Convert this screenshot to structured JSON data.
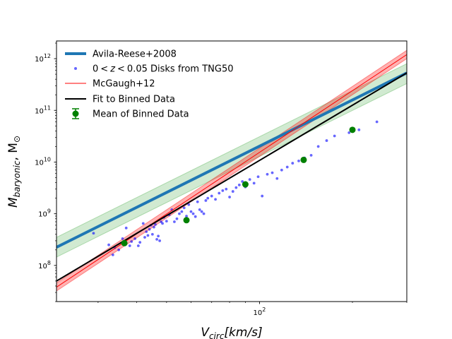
{
  "chart_data": {
    "type": "scatter",
    "title": "",
    "xlabel": {
      "main": "V",
      "sub": "circ",
      "rest": "[km/s]"
    },
    "ylabel": {
      "main": "M",
      "sub": "baryonic",
      "rest": ", M",
      "rest_sub": "⊙"
    },
    "xscale": "log",
    "yscale": "log",
    "xlim": [
      22,
      300
    ],
    "ylim": [
      20000000.0,
      2200000000000.0
    ],
    "x_tick_labels": [
      {
        "value": 100,
        "base": "10",
        "exp": "2"
      }
    ],
    "y_tick_labels": [
      {
        "value": 100000000.0,
        "base": "10",
        "exp": "8"
      },
      {
        "value": 1000000000.0,
        "base": "10",
        "exp": "9"
      },
      {
        "value": 10000000000.0,
        "base": "10",
        "exp": "10"
      },
      {
        "value": 100000000000.0,
        "base": "10",
        "exp": "11"
      },
      {
        "value": 1000000000000.0,
        "base": "10",
        "exp": "12"
      }
    ],
    "legend_position": "top-left",
    "colors": {
      "avila": "#1f77b4",
      "avila_band": "#2ca02c",
      "tng": "#0000ff",
      "mcgaugh": "#ff0000",
      "mcgaugh_band": "#ff0000",
      "fit": "#000000",
      "binned": "#008000"
    },
    "series": [
      {
        "name": "Avila-Reese+2008",
        "kind": "line",
        "x": [
          22,
          300
        ],
        "y": [
          225000000.0,
          530000000000.0
        ],
        "band": {
          "lower": [
            145000000.0,
            330000000000.0
          ],
          "upper": [
            350000000.0,
            800000000000.0
          ]
        }
      },
      {
        "name": "0 < z < 0.05 Disks from TNG50",
        "label_parts": [
          "0",
          "<",
          "z",
          "<",
          "0.05 Disks from TNG50"
        ],
        "kind": "scatter",
        "x": [
          29.0,
          32.5,
          33.5,
          34.0,
          35.0,
          36.0,
          37.0,
          38.0,
          38.5,
          39.5,
          40.5,
          41.0,
          42.0,
          42.5,
          43.0,
          43.5,
          44.0,
          44.5,
          45.0,
          45.5,
          46.0,
          46.5,
          47.0,
          47.5,
          48.0,
          48.5,
          49.0,
          50.0,
          51.0,
          52.0,
          53.0,
          54.0,
          55.0,
          56.0,
          57.0,
          58.0,
          59.0,
          60.0,
          61.0,
          62.0,
          63.0,
          64.0,
          65.0,
          66.0,
          67.0,
          68.0,
          70.0,
          72.0,
          74.0,
          76.0,
          78.0,
          80.0,
          82.0,
          84.0,
          86.0,
          88.0,
          90.0,
          93.0,
          96.0,
          99.0,
          102.0,
          106.0,
          110.0,
          114.0,
          118.0,
          123.0,
          128.0,
          134.0,
          140.0,
          147.0,
          155.0,
          165.0,
          175.0,
          195.0,
          210.0,
          240.0
        ],
        "y": [
          420000000.0,
          250000000.0,
          160000000.0,
          220000000.0,
          200000000.0,
          330000000.0,
          530000000.0,
          240000000.0,
          290000000.0,
          330000000.0,
          240000000.0,
          280000000.0,
          650000000.0,
          350000000.0,
          450000000.0,
          380000000.0,
          500000000.0,
          600000000.0,
          400000000.0,
          550000000.0,
          620000000.0,
          320000000.0,
          370000000.0,
          300000000.0,
          700000000.0,
          650000000.0,
          850000000.0,
          720000000.0,
          950000000.0,
          1200000000.0,
          700000000.0,
          800000000.0,
          1000000000.0,
          1100000000.0,
          1300000000.0,
          900000000.0,
          1500000000.0,
          1100000000.0,
          1000000000.0,
          880000000.0,
          1700000000.0,
          1200000000.0,
          1100000000.0,
          1000000000.0,
          1800000000.0,
          2000000000.0,
          2200000000.0,
          1900000000.0,
          2500000000.0,
          2800000000.0,
          3000000000.0,
          2100000000.0,
          2700000000.0,
          3200000000.0,
          3600000000.0,
          4200000000.0,
          3300000000.0,
          4600000000.0,
          3900000000.0,
          5200000000.0,
          2200000000.0,
          5800000000.0,
          6200000000.0,
          4800000000.0,
          7000000000.0,
          8000000000.0,
          9500000000.0,
          10500000000.0,
          12000000000.0,
          13500000000.0,
          20000000000.0,
          26000000000.0,
          32000000000.0,
          37000000000.0,
          42000000000.0,
          60000000000.0
        ]
      },
      {
        "name": "McGaugh+12",
        "kind": "line",
        "x": [
          22,
          300
        ],
        "y": [
          38000000.0,
          1200000000000.0
        ],
        "band": {
          "lower": [
            32000000.0,
            1000000000000.0
          ],
          "upper": [
            46000000.0,
            1450000000000.0
          ]
        }
      },
      {
        "name": "Fit to Binned Data",
        "kind": "line",
        "x": [
          22,
          300
        ],
        "y": [
          50000000.0,
          530000000000.0
        ]
      },
      {
        "name": "Mean of Binned Data",
        "kind": "errorbar",
        "x": [
          36.5,
          58.0,
          90.0,
          139.0,
          200.0
        ],
        "y": [
          270000000.0,
          750000000.0,
          3700000000.0,
          11000000000.0,
          42000000000.0
        ]
      }
    ]
  }
}
